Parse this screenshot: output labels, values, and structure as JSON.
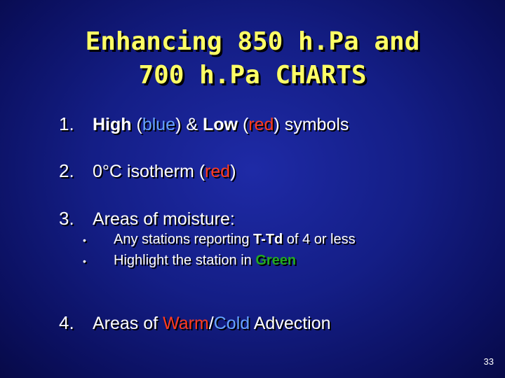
{
  "slide": {
    "title_line1": "Enhancing 850 h.Pa and",
    "title_line2": "700 h.Pa CHARTS",
    "item1": {
      "number": "1.",
      "high": "High",
      "paren_open_blue": " (",
      "blue_word": "blue",
      "paren_close_blue": ") & ",
      "low": "Low",
      "paren_open_red": " (",
      "red_word": "red",
      "rest": ") symbols"
    },
    "item2": {
      "number": "2.",
      "text": "0°C isotherm (",
      "red_word": "red",
      "close": ")"
    },
    "item3": {
      "number": "3.",
      "text": "Areas of moisture:",
      "bullets": [
        {
          "marker": "•",
          "pre": "Any stations reporting ",
          "bold": "T-Td",
          "post": " of 4 or less"
        },
        {
          "marker": "•",
          "pre": "Highlight the station in ",
          "green": "Green"
        }
      ]
    },
    "item4": {
      "number": "4.",
      "pre": "Areas of ",
      "warm": "Warm",
      "slash": "/",
      "cold": "Cold",
      "post": " Advection"
    },
    "page_number": "33"
  },
  "colors": {
    "background": "#141e86",
    "title": "#ffff66",
    "blue": "#66a3ff",
    "red": "#ff3b1f",
    "green": "#22aa22"
  }
}
